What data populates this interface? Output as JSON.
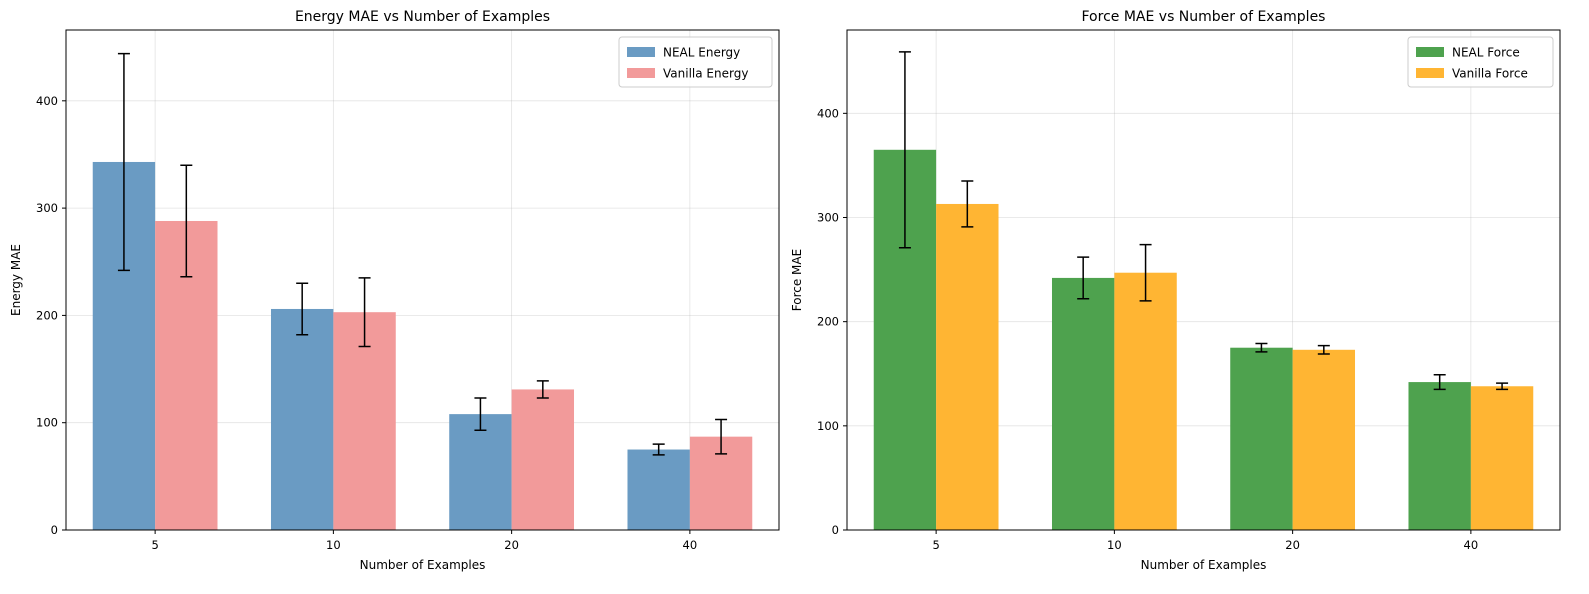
{
  "chart_data": [
    {
      "type": "bar",
      "title": "Energy MAE vs Number of Examples",
      "xlabel": "Number of Examples",
      "ylabel": "Energy MAE",
      "categories": [
        "5",
        "10",
        "20",
        "40"
      ],
      "ylim": [
        0,
        466
      ],
      "yticks": [
        0,
        100,
        200,
        300,
        400
      ],
      "grid": true,
      "legend_position": "top-right",
      "series": [
        {
          "name": "NEAL Energy",
          "color": "#6a9bc3",
          "values": [
            343,
            206,
            108,
            75
          ],
          "errors": [
            101,
            24,
            15,
            5
          ]
        },
        {
          "name": "Vanilla Energy",
          "color": "#f29a9a",
          "values": [
            288,
            203,
            131,
            87
          ],
          "errors": [
            52,
            32,
            8,
            16
          ]
        }
      ]
    },
    {
      "type": "bar",
      "title": "Force MAE vs Number of Examples",
      "xlabel": "Number of Examples",
      "ylabel": "Force MAE",
      "categories": [
        "5",
        "10",
        "20",
        "40"
      ],
      "ylim": [
        0,
        480
      ],
      "yticks": [
        0,
        100,
        200,
        300,
        400
      ],
      "grid": true,
      "legend_position": "top-right",
      "series": [
        {
          "name": "NEAL Force",
          "color": "#4ea24e",
          "values": [
            365,
            242,
            175,
            142
          ],
          "errors": [
            94,
            20,
            4,
            7
          ]
        },
        {
          "name": "Vanilla Force",
          "color": "#ffb533",
          "values": [
            313,
            247,
            173,
            138
          ],
          "errors": [
            22,
            27,
            4,
            3
          ]
        }
      ]
    }
  ]
}
